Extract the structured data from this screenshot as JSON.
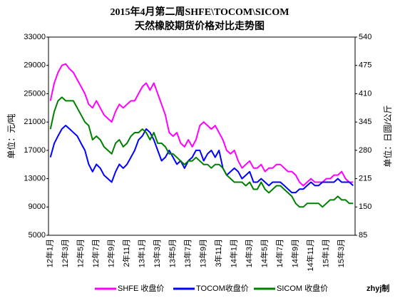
{
  "chart_data": {
    "type": "line",
    "title": "2015年4月第二周SHFE\\TOCOM\\SICOM",
    "subtitle": "天然橡胶期货价格对比走势图",
    "y_label": "单位：元/吨",
    "y2_label": "单位：日圆/公斤",
    "annotation": "zhyj制",
    "legend": "bottom",
    "grid": false,
    "categories": [
      "12年1月",
      null,
      null,
      null,
      "12年3月",
      null,
      null,
      null,
      "12年5月",
      null,
      null,
      null,
      "12年7月",
      null,
      null,
      null,
      "12年9月",
      null,
      null,
      null,
      "2年11月",
      null,
      null,
      null,
      "13年1月",
      null,
      null,
      null,
      "13年3月",
      null,
      null,
      null,
      "13年5月",
      null,
      null,
      null,
      "13年7月",
      null,
      null,
      null,
      "13年9月",
      null,
      null,
      null,
      "3年11月",
      null,
      null,
      null,
      "14年1月",
      null,
      null,
      null,
      "14年3月",
      null,
      null,
      null,
      "14年5月",
      null,
      null,
      null,
      "14年7月",
      null,
      null,
      null,
      "14年9月",
      null,
      null,
      null,
      "14年11月",
      null,
      null,
      null,
      "15年1月",
      null,
      null,
      null,
      "15年3月",
      null,
      null,
      null
    ],
    "ylim": [
      5000,
      33000
    ],
    "yticks": [
      5000,
      9000,
      13000,
      17000,
      21000,
      25000,
      29000,
      33000
    ],
    "y2lim": [
      85,
      540
    ],
    "y2ticks": [
      85,
      150,
      215,
      280,
      345,
      410,
      475,
      540
    ],
    "series": [
      {
        "name": "SHFE 收盘价",
        "color": "#ff00ff",
        "values": [
          24000,
          26500,
          28000,
          29000,
          29200,
          28500,
          28000,
          27000,
          26000,
          25000,
          23500,
          23000,
          24000,
          23000,
          22000,
          21500,
          21000,
          22500,
          23500,
          23000,
          23500,
          24000,
          24000,
          25000,
          26000,
          26500,
          25500,
          26500,
          25000,
          23500,
          22000,
          19500,
          19000,
          19500,
          18000,
          17500,
          18500,
          17500,
          18500,
          20500,
          21000,
          20500,
          20000,
          20500,
          19500,
          18500,
          17000,
          16500,
          17000,
          15500,
          14500,
          15000,
          15500,
          14500,
          14500,
          15000,
          14000,
          14500,
          14500,
          15000,
          15000,
          14500,
          14000,
          14000,
          13500,
          12500,
          12000,
          12500,
          13000,
          12500,
          12500,
          12500,
          13000,
          13000,
          13500,
          13500,
          14000,
          13000,
          12500,
          12500
        ]
      },
      {
        "name": "TOCOM收盘价",
        "color": "#0000ff",
        "axis": "y2",
        "values": [
          264,
          296,
          313,
          329,
          337,
          329,
          321,
          313,
          296,
          280,
          248,
          231,
          248,
          239,
          223,
          215,
          207,
          231,
          248,
          239,
          248,
          264,
          280,
          304,
          313,
          329,
          321,
          304,
          280,
          256,
          264,
          280,
          264,
          248,
          256,
          239,
          256,
          264,
          280,
          280,
          256,
          272,
          280,
          264,
          280,
          239,
          223,
          231,
          239,
          231,
          215,
          223,
          231,
          207,
          207,
          215,
          207,
          199,
          207,
          207,
          207,
          199,
          191,
          183,
          183,
          191,
          191,
          199,
          207,
          199,
          199,
          207,
          207,
          207,
          207,
          215,
          207,
          207,
          207,
          199
        ]
      },
      {
        "name": "SICOM 收盘价",
        "color": "#008000",
        "values": [
          20000,
          22500,
          24000,
          24500,
          24000,
          24000,
          24000,
          23000,
          22000,
          21000,
          20500,
          18500,
          19000,
          18500,
          17500,
          17000,
          16500,
          18000,
          18500,
          17500,
          18000,
          19000,
          19500,
          19500,
          20000,
          19500,
          18500,
          19500,
          18000,
          18000,
          17500,
          16500,
          16500,
          16000,
          15500,
          15000,
          15500,
          15500,
          16000,
          15500,
          15000,
          15000,
          14500,
          15000,
          15000,
          14500,
          13500,
          13000,
          12500,
          12500,
          12500,
          12000,
          12500,
          11500,
          11500,
          12500,
          11500,
          11000,
          11500,
          12000,
          12000,
          11500,
          11000,
          10500,
          9500,
          9000,
          9000,
          9500,
          9500,
          9500,
          9500,
          9000,
          9500,
          10000,
          10000,
          10500,
          10000,
          10000,
          9500,
          9500
        ]
      }
    ]
  }
}
